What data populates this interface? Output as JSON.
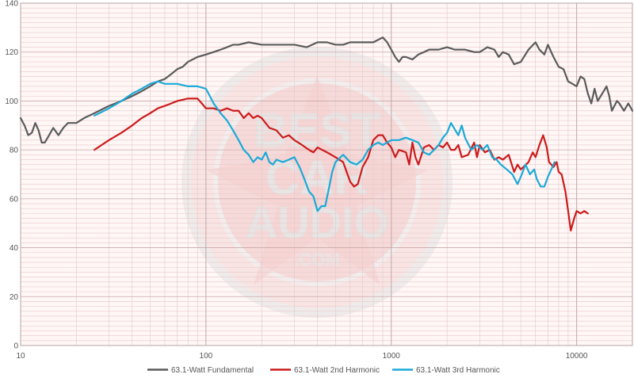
{
  "chart_data": {
    "type": "line",
    "x_scale": "log",
    "xlim": [
      10,
      20000
    ],
    "ylim": [
      0,
      140
    ],
    "grid": true,
    "legend_position": "bottom",
    "x_ticks": [
      "10",
      "100",
      "1000",
      "10000"
    ],
    "x_tick_values": [
      10,
      100,
      1000,
      10000
    ],
    "y_ticks": [
      "0",
      "20",
      "40",
      "60",
      "80",
      "100",
      "120",
      "140"
    ],
    "y_tick_values": [
      0,
      20,
      40,
      60,
      80,
      100,
      120,
      140
    ],
    "watermark": "BEST CAR AUDIO .COM",
    "series": [
      {
        "name": "63.1-Watt Fundamental",
        "color": "#5a5a5a",
        "points": [
          [
            10,
            93
          ],
          [
            10.5,
            90
          ],
          [
            11,
            86
          ],
          [
            11.5,
            87
          ],
          [
            12,
            91
          ],
          [
            12.5,
            88
          ],
          [
            13,
            83
          ],
          [
            13.5,
            83
          ],
          [
            14,
            85
          ],
          [
            15,
            89
          ],
          [
            16,
            86
          ],
          [
            17,
            89
          ],
          [
            18,
            91
          ],
          [
            20,
            91
          ],
          [
            22,
            93
          ],
          [
            25,
            95
          ],
          [
            30,
            98
          ],
          [
            35,
            100
          ],
          [
            40,
            102
          ],
          [
            45,
            104
          ],
          [
            50,
            106
          ],
          [
            55,
            108
          ],
          [
            60,
            109
          ],
          [
            65,
            111
          ],
          [
            70,
            113
          ],
          [
            75,
            114
          ],
          [
            80,
            116
          ],
          [
            90,
            118
          ],
          [
            100,
            119
          ],
          [
            110,
            120
          ],
          [
            120,
            121
          ],
          [
            130,
            122
          ],
          [
            140,
            123
          ],
          [
            150,
            123
          ],
          [
            170,
            124
          ],
          [
            200,
            123
          ],
          [
            250,
            123
          ],
          [
            300,
            123
          ],
          [
            350,
            122
          ],
          [
            400,
            124
          ],
          [
            450,
            124
          ],
          [
            500,
            123
          ],
          [
            550,
            123
          ],
          [
            600,
            124
          ],
          [
            700,
            124
          ],
          [
            800,
            124
          ],
          [
            900,
            126
          ],
          [
            950,
            124
          ],
          [
            1000,
            121
          ],
          [
            1050,
            118
          ],
          [
            1100,
            116
          ],
          [
            1150,
            118
          ],
          [
            1200,
            118
          ],
          [
            1300,
            117
          ],
          [
            1400,
            119
          ],
          [
            1500,
            120
          ],
          [
            1600,
            121
          ],
          [
            1800,
            121
          ],
          [
            2000,
            122
          ],
          [
            2200,
            121
          ],
          [
            2500,
            121
          ],
          [
            2800,
            120
          ],
          [
            3000,
            120
          ],
          [
            3300,
            122
          ],
          [
            3600,
            121
          ],
          [
            3800,
            118
          ],
          [
            4000,
            120
          ],
          [
            4300,
            119
          ],
          [
            4600,
            115
          ],
          [
            5000,
            116
          ],
          [
            5500,
            121
          ],
          [
            6000,
            124
          ],
          [
            6300,
            121
          ],
          [
            6700,
            119
          ],
          [
            7000,
            123
          ],
          [
            7500,
            118
          ],
          [
            8000,
            114
          ],
          [
            8500,
            113
          ],
          [
            9000,
            108
          ],
          [
            9500,
            107
          ],
          [
            10000,
            106
          ],
          [
            10500,
            110
          ],
          [
            11000,
            109
          ],
          [
            11500,
            103
          ],
          [
            12000,
            99
          ],
          [
            12500,
            105
          ],
          [
            13000,
            100
          ],
          [
            14000,
            104
          ],
          [
            14500,
            106
          ],
          [
            15000,
            102
          ],
          [
            15500,
            96
          ],
          [
            16500,
            100
          ],
          [
            17000,
            99
          ],
          [
            18000,
            96
          ],
          [
            19000,
            99
          ],
          [
            20000,
            96
          ]
        ]
      },
      {
        "name": "63.1-Watt 2nd Harmonic",
        "color": "#cc1a1a",
        "points": [
          [
            25,
            80
          ],
          [
            30,
            84
          ],
          [
            35,
            87
          ],
          [
            40,
            90
          ],
          [
            45,
            93
          ],
          [
            50,
            95
          ],
          [
            55,
            97
          ],
          [
            60,
            98
          ],
          [
            65,
            99
          ],
          [
            70,
            100
          ],
          [
            80,
            101
          ],
          [
            90,
            101
          ],
          [
            95,
            99
          ],
          [
            100,
            97
          ],
          [
            110,
            97
          ],
          [
            120,
            96
          ],
          [
            130,
            97
          ],
          [
            140,
            96
          ],
          [
            150,
            96
          ],
          [
            160,
            93
          ],
          [
            170,
            95
          ],
          [
            180,
            93
          ],
          [
            190,
            94
          ],
          [
            200,
            93
          ],
          [
            220,
            89
          ],
          [
            240,
            88
          ],
          [
            260,
            85
          ],
          [
            280,
            86
          ],
          [
            300,
            84
          ],
          [
            330,
            82
          ],
          [
            360,
            80
          ],
          [
            380,
            79
          ],
          [
            400,
            81
          ],
          [
            450,
            79
          ],
          [
            500,
            77
          ],
          [
            550,
            75
          ],
          [
            600,
            67
          ],
          [
            630,
            65
          ],
          [
            660,
            66
          ],
          [
            700,
            73
          ],
          [
            750,
            77
          ],
          [
            800,
            84
          ],
          [
            850,
            86
          ],
          [
            900,
            86
          ],
          [
            950,
            83
          ],
          [
            1000,
            81
          ],
          [
            1050,
            77
          ],
          [
            1100,
            80
          ],
          [
            1200,
            79
          ],
          [
            1250,
            74
          ],
          [
            1300,
            83
          ],
          [
            1350,
            77
          ],
          [
            1400,
            74
          ],
          [
            1500,
            81
          ],
          [
            1600,
            82
          ],
          [
            1700,
            80
          ],
          [
            1800,
            82
          ],
          [
            1900,
            81
          ],
          [
            2000,
            83
          ],
          [
            2100,
            80
          ],
          [
            2200,
            80
          ],
          [
            2300,
            82
          ],
          [
            2400,
            77
          ],
          [
            2600,
            78
          ],
          [
            2800,
            83
          ],
          [
            2900,
            77
          ],
          [
            3000,
            82
          ],
          [
            3200,
            79
          ],
          [
            3400,
            80
          ],
          [
            3600,
            76
          ],
          [
            3800,
            77
          ],
          [
            4000,
            76
          ],
          [
            4300,
            78
          ],
          [
            4600,
            71
          ],
          [
            4800,
            74
          ],
          [
            5000,
            72
          ],
          [
            5500,
            75
          ],
          [
            5800,
            79
          ],
          [
            6000,
            77
          ],
          [
            6300,
            82
          ],
          [
            6600,
            86
          ],
          [
            6900,
            81
          ],
          [
            7100,
            75
          ],
          [
            7500,
            73
          ],
          [
            7800,
            75
          ],
          [
            8000,
            71
          ],
          [
            8300,
            70
          ],
          [
            8700,
            63
          ],
          [
            9000,
            55
          ],
          [
            9300,
            47
          ],
          [
            9700,
            52
          ],
          [
            10000,
            55
          ],
          [
            10500,
            54
          ],
          [
            11000,
            55
          ],
          [
            11500,
            54
          ]
        ]
      },
      {
        "name": "63.1-Watt 3rd Harmonic",
        "color": "#1aaad8",
        "points": [
          [
            25,
            94
          ],
          [
            30,
            97
          ],
          [
            35,
            100
          ],
          [
            40,
            103
          ],
          [
            45,
            105
          ],
          [
            50,
            107
          ],
          [
            55,
            108
          ],
          [
            60,
            107
          ],
          [
            70,
            107
          ],
          [
            80,
            106
          ],
          [
            90,
            106
          ],
          [
            100,
            105
          ],
          [
            105,
            102
          ],
          [
            110,
            99
          ],
          [
            120,
            95
          ],
          [
            130,
            92
          ],
          [
            140,
            88
          ],
          [
            150,
            84
          ],
          [
            160,
            80
          ],
          [
            170,
            78
          ],
          [
            180,
            75
          ],
          [
            190,
            77
          ],
          [
            200,
            76
          ],
          [
            210,
            79
          ],
          [
            220,
            75
          ],
          [
            230,
            74
          ],
          [
            240,
            76
          ],
          [
            260,
            75
          ],
          [
            280,
            76
          ],
          [
            300,
            77
          ],
          [
            320,
            73
          ],
          [
            340,
            68
          ],
          [
            360,
            63
          ],
          [
            380,
            61
          ],
          [
            400,
            55
          ],
          [
            420,
            57
          ],
          [
            440,
            57
          ],
          [
            460,
            64
          ],
          [
            480,
            71
          ],
          [
            500,
            75
          ],
          [
            550,
            78
          ],
          [
            600,
            75
          ],
          [
            650,
            74
          ],
          [
            700,
            76
          ],
          [
            750,
            80
          ],
          [
            800,
            82
          ],
          [
            850,
            83
          ],
          [
            900,
            82
          ],
          [
            1000,
            84
          ],
          [
            1100,
            84
          ],
          [
            1200,
            85
          ],
          [
            1300,
            84
          ],
          [
            1400,
            83
          ],
          [
            1500,
            79
          ],
          [
            1600,
            78
          ],
          [
            1700,
            80
          ],
          [
            1800,
            82
          ],
          [
            1900,
            85
          ],
          [
            2000,
            87
          ],
          [
            2100,
            91
          ],
          [
            2300,
            86
          ],
          [
            2400,
            90
          ],
          [
            2500,
            85
          ],
          [
            2700,
            80
          ],
          [
            2900,
            82
          ],
          [
            3100,
            80
          ],
          [
            3300,
            82
          ],
          [
            3500,
            77
          ],
          [
            3700,
            76
          ],
          [
            3900,
            74
          ],
          [
            4200,
            72
          ],
          [
            4500,
            70
          ],
          [
            4800,
            66
          ],
          [
            5000,
            69
          ],
          [
            5300,
            74
          ],
          [
            5600,
            70
          ],
          [
            5900,
            72
          ],
          [
            6100,
            68
          ],
          [
            6400,
            65
          ],
          [
            6700,
            65
          ],
          [
            7000,
            69
          ],
          [
            7300,
            72
          ],
          [
            7600,
            75
          ]
        ]
      }
    ]
  }
}
